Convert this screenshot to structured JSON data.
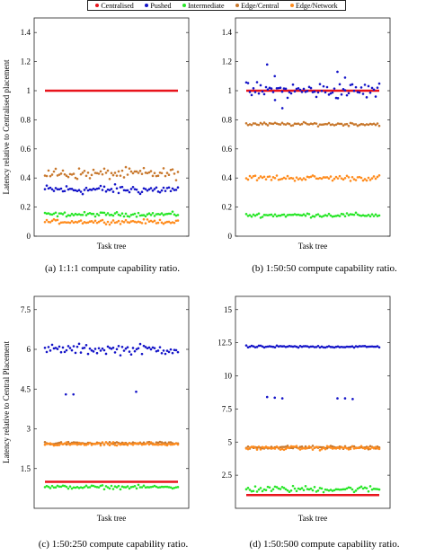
{
  "legend": [
    {
      "label": "Centralised",
      "color": "#e8141c"
    },
    {
      "label": "Pushed",
      "color": "#1414c8"
    },
    {
      "label": "Intermediate",
      "color": "#28e628"
    },
    {
      "label": "Edge/Central",
      "color": "#c8782d"
    },
    {
      "label": "Edge/Network",
      "color": "#ff8c1e"
    }
  ],
  "chart_data": [
    {
      "type": "scatter",
      "caption": "(a) 1:1:1 compute capability ratio.",
      "xlabel": "Task tree",
      "ylabel": "Latency relative to Centralised placement",
      "ylim": [
        0,
        1.5
      ],
      "yticks": [
        "0",
        "0.2",
        "0.4",
        "0.6",
        "0.8",
        "1",
        "1.2",
        "1.4"
      ],
      "ytick_values": [
        0,
        0.2,
        0.4,
        0.6,
        0.8,
        1,
        1.2,
        1.4
      ],
      "series": [
        {
          "name": "Centralised",
          "kind": "line",
          "value": 1.0
        },
        {
          "name": "Pushed",
          "center": 0.32,
          "spread": 0.035
        },
        {
          "name": "Intermediate",
          "center": 0.15,
          "spread": 0.015
        },
        {
          "name": "Edge/Central",
          "center": 0.43,
          "spread": 0.04
        },
        {
          "name": "Edge/Network",
          "center": 0.1,
          "spread": 0.015
        }
      ]
    },
    {
      "type": "scatter",
      "caption": "(b) 1:50:50 compute capability ratio.",
      "xlabel": "Task tree",
      "ylabel": "",
      "ylim": [
        0,
        1.5
      ],
      "yticks": [
        "0",
        "0.2",
        "0.4",
        "0.6",
        "0.8",
        "1",
        "1.2",
        "1.4"
      ],
      "ytick_values": [
        0,
        0.2,
        0.4,
        0.6,
        0.8,
        1,
        1.2,
        1.4
      ],
      "series": [
        {
          "name": "Centralised",
          "kind": "line",
          "value": 1.0
        },
        {
          "name": "Pushed",
          "center": 1.0,
          "spread": 0.06,
          "outliers": [
            1.18,
            1.13,
            1.1,
            1.09,
            0.88
          ]
        },
        {
          "name": "Intermediate",
          "center": 0.145,
          "spread": 0.015
        },
        {
          "name": "Edge/Central",
          "center": 0.77,
          "spread": 0.012
        },
        {
          "name": "Edge/Network",
          "center": 0.4,
          "spread": 0.02
        }
      ]
    },
    {
      "type": "scatter",
      "caption": "(c) 1:50:250 compute capability ratio.",
      "xlabel": "Task tree",
      "ylabel": "Latency relative to Central Placement",
      "ylim": [
        0,
        8
      ],
      "yticks": [
        "1.5",
        "3",
        "4.5",
        "6",
        "7.5"
      ],
      "ytick_values": [
        1.5,
        3,
        4.5,
        6,
        7.5
      ],
      "series": [
        {
          "name": "Centralised",
          "kind": "line",
          "value": 1.0
        },
        {
          "name": "Pushed",
          "center": 6.0,
          "spread": 0.2,
          "outliers": [
            4.3,
            4.4,
            4.3
          ]
        },
        {
          "name": "Intermediate",
          "center": 0.8,
          "spread": 0.07
        },
        {
          "name": "Edge/Central",
          "center": 2.45,
          "spread": 0.06
        },
        {
          "name": "Edge/Network",
          "center": 2.42,
          "spread": 0.07
        }
      ]
    },
    {
      "type": "scatter",
      "caption": "(d) 1:50:500 compute capability ratio.",
      "xlabel": "Task tree",
      "ylabel": "",
      "ylim": [
        0,
        16
      ],
      "yticks": [
        "2.5",
        "5",
        "7.5",
        "10",
        "12.5",
        "15"
      ],
      "ytick_values": [
        2.5,
        5,
        7.5,
        10,
        12.5,
        15
      ],
      "series": [
        {
          "name": "Centralised",
          "kind": "line",
          "value": 1.0
        },
        {
          "name": "Pushed",
          "center": 12.2,
          "spread": 0.08,
          "outliers": [
            8.4,
            8.3,
            8.35,
            8.3,
            8.3,
            8.25
          ]
        },
        {
          "name": "Intermediate",
          "center": 1.45,
          "spread": 0.25
        },
        {
          "name": "Edge/Central",
          "center": 4.6,
          "spread": 0.12
        },
        {
          "name": "Edge/Network",
          "center": 4.55,
          "spread": 0.15
        }
      ]
    }
  ]
}
